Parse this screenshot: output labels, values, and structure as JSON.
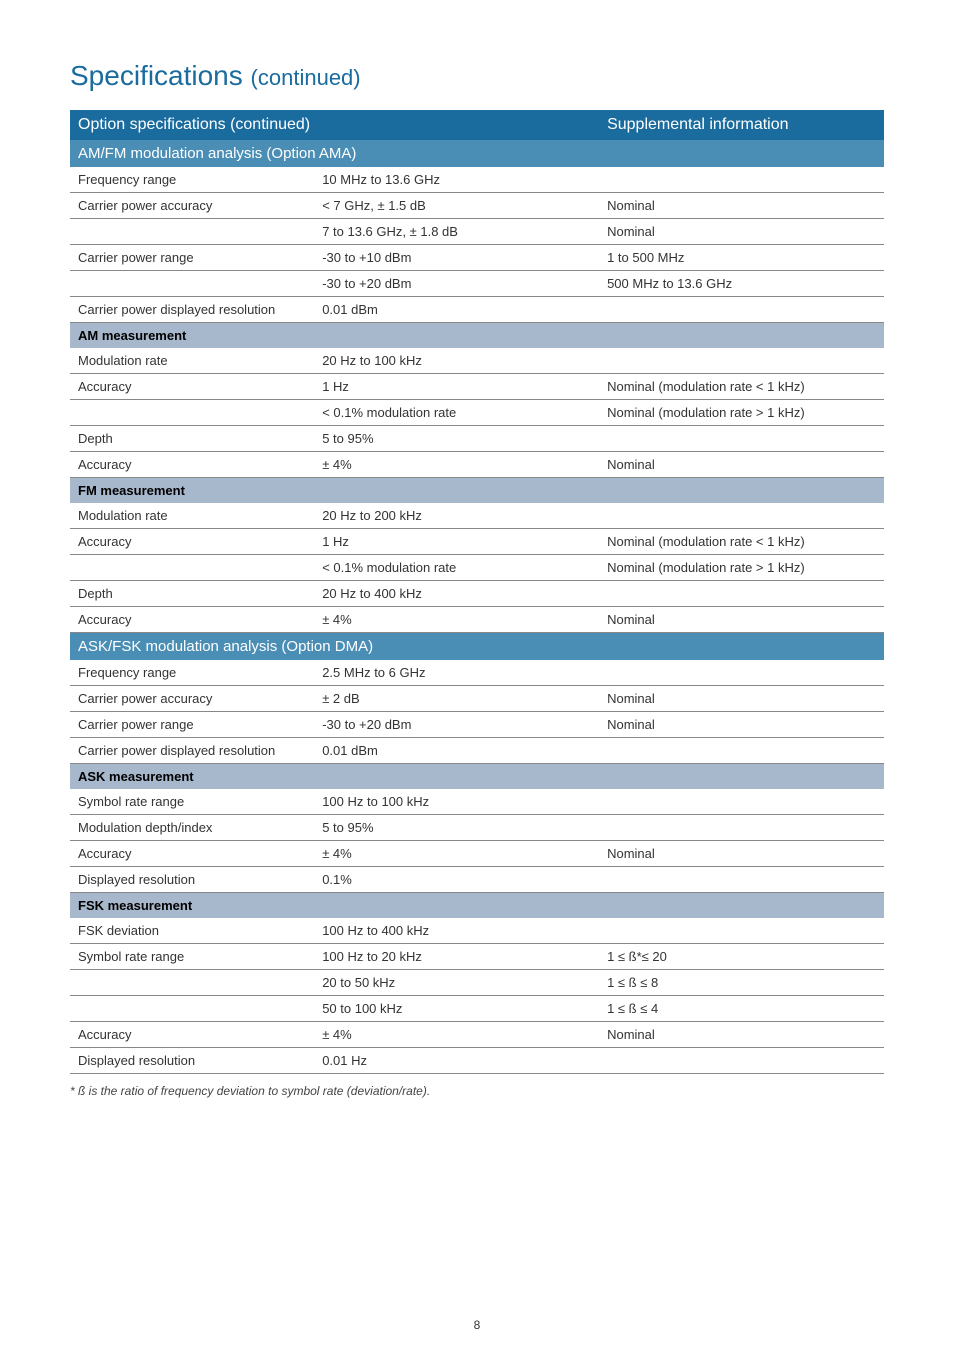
{
  "title": "Specifications",
  "title_suffix": "(continued)",
  "header_left": "Option specifications (continued)",
  "header_right": "Supplemental information",
  "footnote": "* ß is the ratio of frequency deviation to symbol rate (deviation/rate).",
  "page_number": "8",
  "colors": {
    "title": "#1a6b9e",
    "header_bg": "#1a6b9e",
    "section_bg": "#4a8db5",
    "subheader_bg": "#a8b8cc",
    "border": "#888888"
  },
  "sections": [
    {
      "title": "AM/FM modulation analysis (Option AMA)",
      "groups": [
        {
          "rows": [
            {
              "c1": "Frequency range",
              "c2": "10 MHz to 13.6 GHz",
              "c3": ""
            },
            {
              "c1": "Carrier power accuracy",
              "c2": "< 7 GHz, ± 1.5 dB",
              "c3": "Nominal"
            },
            {
              "c1": "",
              "c2": "7 to 13.6 GHz, ± 1.8 dB",
              "c3": "Nominal"
            },
            {
              "c1": "Carrier power range",
              "c2": "-30 to +10 dBm",
              "c3": "1 to 500 MHz"
            },
            {
              "c1": "",
              "c2": "-30 to +20 dBm",
              "c3": "500 MHz to 13.6 GHz"
            },
            {
              "c1": "Carrier power displayed resolution",
              "c2": "0.01 dBm",
              "c3": ""
            }
          ]
        },
        {
          "subheader": "AM measurement",
          "rows": [
            {
              "c1": "Modulation rate",
              "c2": "20 Hz to 100 kHz",
              "c3": ""
            },
            {
              "c1": "Accuracy",
              "c2": "1 Hz",
              "c3": "Nominal (modulation rate < 1 kHz)"
            },
            {
              "c1": "",
              "c2": "< 0.1% modulation rate",
              "c3": "Nominal (modulation rate > 1 kHz)"
            },
            {
              "c1": "Depth",
              "c2": "5 to 95%",
              "c3": ""
            },
            {
              "c1": "Accuracy",
              "c2": "± 4%",
              "c3": "Nominal"
            }
          ]
        },
        {
          "subheader": "FM measurement",
          "rows": [
            {
              "c1": "Modulation rate",
              "c2": "20 Hz to 200 kHz",
              "c3": ""
            },
            {
              "c1": "Accuracy",
              "c2": "1 Hz",
              "c3": "Nominal (modulation rate < 1 kHz)"
            },
            {
              "c1": "",
              "c2": "< 0.1% modulation rate",
              "c3": "Nominal (modulation rate > 1 kHz)"
            },
            {
              "c1": "Depth",
              "c2": "20 Hz to 400 kHz",
              "c3": ""
            },
            {
              "c1": "Accuracy",
              "c2": "± 4%",
              "c3": "Nominal"
            }
          ]
        }
      ]
    },
    {
      "title": "ASK/FSK modulation analysis (Option DMA)",
      "groups": [
        {
          "rows": [
            {
              "c1": "Frequency range",
              "c2": "2.5 MHz to 6 GHz",
              "c3": ""
            },
            {
              "c1": "Carrier power accuracy",
              "c2": "± 2 dB",
              "c3": "Nominal"
            },
            {
              "c1": "Carrier power range",
              "c2": "-30 to +20 dBm",
              "c3": "Nominal"
            },
            {
              "c1": "Carrier power displayed resolution",
              "c2": "0.01 dBm",
              "c3": ""
            }
          ]
        },
        {
          "subheader": "ASK measurement",
          "rows": [
            {
              "c1": "Symbol rate range",
              "c2": "100 Hz to 100 kHz",
              "c3": ""
            },
            {
              "c1": "Modulation depth/index",
              "c2": "5 to 95%",
              "c3": ""
            },
            {
              "c1": "Accuracy",
              "c2": "± 4%",
              "c3": "Nominal"
            },
            {
              "c1": "Displayed resolution",
              "c2": "0.1%",
              "c3": ""
            }
          ]
        },
        {
          "subheader": "FSK measurement",
          "rows": [
            {
              "c1": "FSK deviation",
              "c2": "100 Hz to 400 kHz",
              "c3": ""
            },
            {
              "c1": "Symbol rate range",
              "c2": "100 Hz to 20 kHz",
              "c3": "1 ≤ ß*≤ 20"
            },
            {
              "c1": "",
              "c2": "20 to 50 kHz",
              "c3": "1 ≤ ß ≤ 8"
            },
            {
              "c1": "",
              "c2": "50 to 100 kHz",
              "c3": "1 ≤ ß ≤ 4"
            },
            {
              "c1": "Accuracy",
              "c2": "± 4%",
              "c3": "Nominal"
            },
            {
              "c1": "Displayed resolution",
              "c2": "0.01 Hz",
              "c3": ""
            }
          ]
        }
      ]
    }
  ]
}
